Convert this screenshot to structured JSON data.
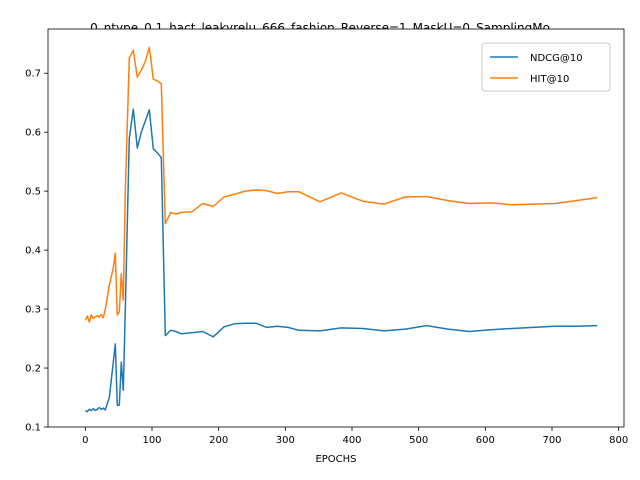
{
  "chart_data": {
    "type": "line",
    "title": "0_ntype_0.1_hact_leakyrelu_666_fashion_Reverse=1_MaskU=0_SamplingMo",
    "xlabel": "EPOCHS",
    "ylabel": "",
    "xlim": [
      -56,
      808
    ],
    "ylim": [
      0.1,
      0.775
    ],
    "xticks": [
      0,
      100,
      200,
      300,
      400,
      500,
      600,
      700,
      800
    ],
    "yticks": [
      0.1,
      0.2,
      0.3,
      0.4,
      0.5,
      0.6,
      0.7
    ],
    "grid": false,
    "legend_position": "top-right",
    "series": [
      {
        "name": "NDCG@10",
        "color": "#1f77b4",
        "x": [
          0,
          3,
          6,
          9,
          12,
          15,
          18,
          21,
          24,
          27,
          30,
          36,
          42,
          45,
          48,
          51,
          54,
          57,
          60,
          66,
          72,
          78,
          84,
          90,
          96,
          102,
          108,
          114,
          120,
          128,
          136,
          144,
          160,
          176,
          192,
          208,
          224,
          240,
          256,
          272,
          288,
          304,
          320,
          352,
          384,
          416,
          448,
          480,
          512,
          544,
          576,
          608,
          640,
          672,
          704,
          736,
          768
        ],
        "y": [
          0.128,
          0.126,
          0.13,
          0.128,
          0.131,
          0.128,
          0.13,
          0.133,
          0.13,
          0.132,
          0.129,
          0.15,
          0.21,
          0.241,
          0.137,
          0.137,
          0.21,
          0.162,
          0.3,
          0.59,
          0.639,
          0.573,
          0.6,
          0.619,
          0.638,
          0.572,
          0.565,
          0.557,
          0.255,
          0.264,
          0.262,
          0.258,
          0.26,
          0.262,
          0.253,
          0.27,
          0.275,
          0.276,
          0.276,
          0.269,
          0.271,
          0.269,
          0.264,
          0.263,
          0.268,
          0.267,
          0.263,
          0.266,
          0.272,
          0.266,
          0.262,
          0.265,
          0.267,
          0.269,
          0.271,
          0.271,
          0.272
        ]
      },
      {
        "name": "HIT@10",
        "color": "#ff7f0e",
        "x": [
          0,
          3,
          6,
          9,
          12,
          15,
          18,
          21,
          24,
          27,
          30,
          36,
          42,
          45,
          48,
          51,
          54,
          57,
          60,
          66,
          72,
          78,
          84,
          90,
          96,
          102,
          108,
          114,
          120,
          128,
          136,
          144,
          160,
          176,
          192,
          208,
          224,
          240,
          256,
          272,
          288,
          304,
          320,
          352,
          384,
          416,
          448,
          480,
          512,
          544,
          576,
          608,
          640,
          672,
          704,
          736,
          768
        ],
        "y": [
          0.281,
          0.288,
          0.278,
          0.29,
          0.284,
          0.287,
          0.289,
          0.286,
          0.291,
          0.285,
          0.3,
          0.34,
          0.37,
          0.395,
          0.29,
          0.295,
          0.36,
          0.315,
          0.5,
          0.726,
          0.739,
          0.693,
          0.705,
          0.72,
          0.744,
          0.69,
          0.687,
          0.682,
          0.445,
          0.464,
          0.461,
          0.464,
          0.465,
          0.479,
          0.474,
          0.49,
          0.495,
          0.5,
          0.502,
          0.501,
          0.496,
          0.499,
          0.499,
          0.482,
          0.497,
          0.483,
          0.478,
          0.49,
          0.491,
          0.484,
          0.479,
          0.48,
          0.477,
          0.478,
          0.479,
          0.484,
          0.489
        ]
      }
    ]
  }
}
